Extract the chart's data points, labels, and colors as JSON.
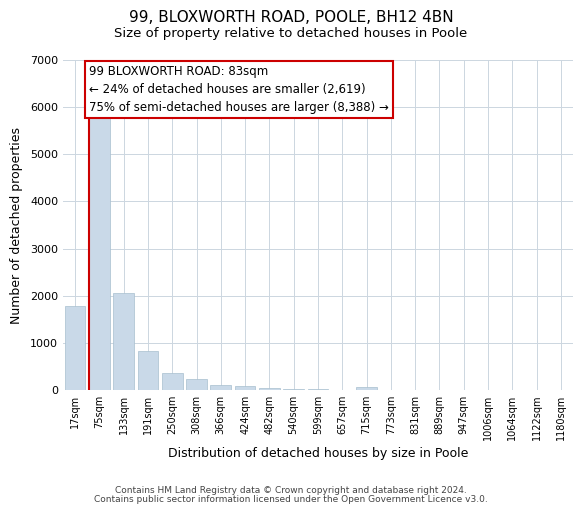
{
  "title": "99, BLOXWORTH ROAD, POOLE, BH12 4BN",
  "subtitle": "Size of property relative to detached houses in Poole",
  "xlabel": "Distribution of detached houses by size in Poole",
  "ylabel": "Number of detached properties",
  "bar_color": "#c9d9e8",
  "bar_edge_color": "#a8bfcf",
  "categories": [
    "17sqm",
    "75sqm",
    "133sqm",
    "191sqm",
    "250sqm",
    "308sqm",
    "366sqm",
    "424sqm",
    "482sqm",
    "540sqm",
    "599sqm",
    "657sqm",
    "715sqm",
    "773sqm",
    "831sqm",
    "889sqm",
    "947sqm",
    "1006sqm",
    "1064sqm",
    "1122sqm",
    "1180sqm"
  ],
  "values": [
    1780,
    5770,
    2050,
    820,
    370,
    240,
    115,
    90,
    45,
    30,
    20,
    10,
    55,
    0,
    0,
    0,
    0,
    0,
    0,
    0,
    0
  ],
  "ylim": [
    0,
    7000
  ],
  "yticks": [
    0,
    1000,
    2000,
    3000,
    4000,
    5000,
    6000,
    7000
  ],
  "property_line_color": "#cc0000",
  "annotation_text": "99 BLOXWORTH ROAD: 83sqm\n← 24% of detached houses are smaller (2,619)\n75% of semi-detached houses are larger (8,388) →",
  "annotation_box_color": "#ffffff",
  "annotation_box_edge_color": "#cc0000",
  "footer_line1": "Contains HM Land Registry data © Crown copyright and database right 2024.",
  "footer_line2": "Contains public sector information licensed under the Open Government Licence v3.0.",
  "background_color": "#ffffff",
  "grid_color": "#ccd6e0",
  "title_fontsize": 11,
  "subtitle_fontsize": 9.5
}
